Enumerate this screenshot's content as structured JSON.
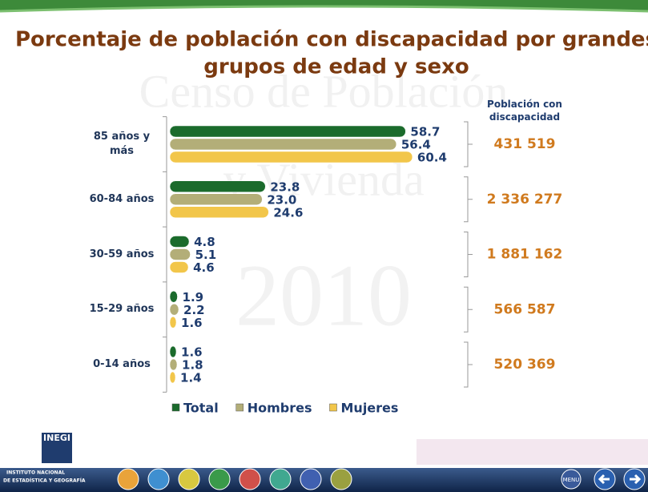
{
  "title": [
    "Porcentaje de población con discapacidad por grandes",
    "grupos de edad y sexo"
  ],
  "watermark": [
    "Censo de Población",
    "y Vivienda",
    "2010"
  ],
  "footer": {
    "logo": "INEGI",
    "institute": [
      "INSTITUTO NACIONAL",
      "DE ESTADÍSTICA Y GEOGRAFÍA"
    ],
    "menu": "MENU"
  },
  "chart_data": {
    "type": "bar",
    "orientation": "horizontal",
    "categories": [
      "85 años y más",
      "60-84 años",
      "30-59 años",
      "15-29 años",
      "0-14 años"
    ],
    "series": [
      {
        "name": "Total",
        "color": "#1b6b2c",
        "values": [
          58.7,
          23.8,
          4.8,
          1.9,
          1.6
        ],
        "value_labels": [
          "58.7",
          "23.8",
          "4.8",
          "1.9",
          "1.6"
        ]
      },
      {
        "name": "Hombres",
        "color": "#b3ae78",
        "values": [
          56.4,
          23.0,
          5.1,
          2.2,
          1.8
        ],
        "value_labels": [
          "56.4",
          "23.0",
          "5.1",
          "2.2",
          "1.8"
        ]
      },
      {
        "name": "Mujeres",
        "color": "#f2c64a",
        "values": [
          60.4,
          24.6,
          4.6,
          1.6,
          1.4
        ],
        "value_labels": [
          "60.4",
          "24.6",
          "4.6",
          "1.6",
          "1.4"
        ]
      }
    ],
    "xlim": [
      0,
      65
    ],
    "legend": "bottom",
    "totals_title": "Población con discapacidad",
    "totals": [
      "431 519",
      "2 336 277",
      "1 881 162",
      "566 587",
      "520 369"
    ]
  }
}
